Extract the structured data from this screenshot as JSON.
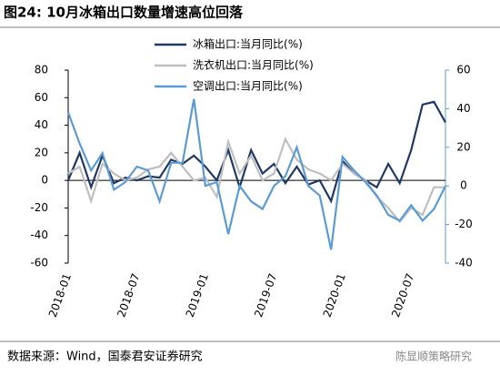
{
  "chart_data": {
    "type": "line",
    "title": "图24: 10月冰箱出口数量增速高位回落",
    "categories": [
      "2018-01",
      null,
      null,
      null,
      null,
      null,
      "2018-07",
      null,
      null,
      null,
      null,
      null,
      "2019-01",
      null,
      null,
      null,
      null,
      null,
      "2019-07",
      null,
      null,
      null,
      null,
      null,
      "2020-01",
      null,
      null,
      null,
      null,
      null,
      "2020-07",
      null,
      null,
      null
    ],
    "series": [
      {
        "name": "冰箱出口:当月同比(%)",
        "color": "#1f3864",
        "values": [
          0,
          20,
          -5,
          18,
          -2,
          2,
          0,
          3,
          2,
          15,
          12,
          18,
          10,
          0,
          22,
          -5,
          22,
          5,
          12,
          -2,
          10,
          -3,
          0,
          -15,
          14,
          5,
          0,
          -5,
          12,
          -2,
          22,
          55,
          57,
          42
        ]
      },
      {
        "name": "洗衣机出口:当月同比(%)",
        "color": "#bfbfbf",
        "values": [
          5,
          10,
          -15,
          12,
          5,
          0,
          2,
          8,
          10,
          20,
          10,
          0,
          2,
          -12,
          28,
          5,
          18,
          0,
          5,
          30,
          15,
          8,
          5,
          0,
          12,
          5,
          0,
          -12,
          -20,
          -30,
          -20,
          -25,
          -5,
          -5
        ]
      },
      {
        "name": "空调出口:当月同比(%)",
        "color": "#5b9bd5",
        "axis": "y2",
        "values": [
          38,
          22,
          8,
          17,
          -2,
          2,
          10,
          8,
          -8,
          12,
          12,
          45,
          0,
          2,
          -25,
          0,
          -8,
          -12,
          0,
          5,
          20,
          0,
          -5,
          -33,
          15,
          8,
          2,
          -5,
          -15,
          -18,
          -10,
          -18,
          -12,
          0
        ]
      }
    ],
    "ylim": [
      -60,
      80
    ],
    "yticks": [
      -60,
      -40,
      -20,
      0,
      20,
      40,
      60,
      80
    ],
    "y2lim": [
      -40,
      60
    ],
    "y2ticks": [
      -40,
      -20,
      0,
      20,
      40,
      60
    ],
    "grid": false,
    "source": "数据来源：Wind，国泰君安证券研究",
    "watermark": "陈显顺策略研究"
  }
}
